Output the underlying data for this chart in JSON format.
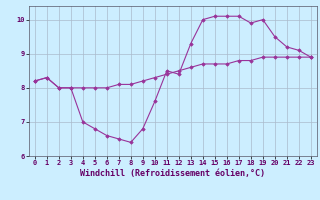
{
  "title": "",
  "xlabel": "Windchill (Refroidissement éolien,°C)",
  "ylabel": "",
  "background_color": "#cceeff",
  "line_color": "#993399",
  "ylim": [
    6,
    10.4
  ],
  "xlim": [
    -0.5,
    23.5
  ],
  "yticks": [
    6,
    7,
    8,
    9,
    10
  ],
  "xticks": [
    0,
    1,
    2,
    3,
    4,
    5,
    6,
    7,
    8,
    9,
    10,
    11,
    12,
    13,
    14,
    15,
    16,
    17,
    18,
    19,
    20,
    21,
    22,
    23
  ],
  "line1_x": [
    0,
    1,
    2,
    3,
    4,
    5,
    6,
    7,
    8,
    9,
    10,
    11,
    12,
    13,
    14,
    15,
    16,
    17,
    18,
    19,
    20,
    21,
    22,
    23
  ],
  "line1_y": [
    8.2,
    8.3,
    8.0,
    8.0,
    7.0,
    6.8,
    6.6,
    6.5,
    6.4,
    6.8,
    7.6,
    8.5,
    8.4,
    9.3,
    10.0,
    10.1,
    10.1,
    10.1,
    9.9,
    10.0,
    9.5,
    9.2,
    9.1,
    8.9
  ],
  "line2_x": [
    0,
    1,
    2,
    3,
    4,
    5,
    6,
    7,
    8,
    9,
    10,
    11,
    12,
    13,
    14,
    15,
    16,
    17,
    18,
    19,
    20,
    21,
    22,
    23
  ],
  "line2_y": [
    8.2,
    8.3,
    8.0,
    8.0,
    8.0,
    8.0,
    8.0,
    8.1,
    8.1,
    8.2,
    8.3,
    8.4,
    8.5,
    8.6,
    8.7,
    8.7,
    8.7,
    8.8,
    8.8,
    8.9,
    8.9,
    8.9,
    8.9,
    8.9
  ],
  "marker": "D",
  "markersize": 1.8,
  "linewidth": 0.8,
  "grid_color": "#aabbcc",
  "tick_fontsize": 5.0,
  "xlabel_fontsize": 6.0
}
